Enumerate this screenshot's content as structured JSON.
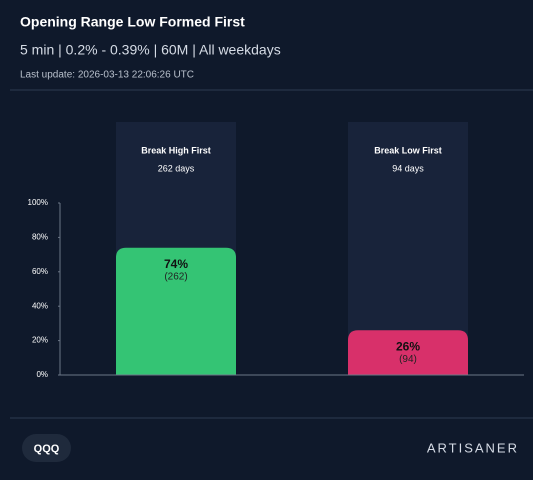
{
  "chart_data": {
    "type": "bar",
    "title": "Opening Range Low Formed First",
    "subtitle": "5 min | 0.2% - 0.39% | 60M | All weekdays",
    "note": "Last update: 2026-03-13 22:06:26 UTC",
    "categories": [
      "Break High First",
      "Break Low First"
    ],
    "category_notes": [
      "262 days",
      "94 days"
    ],
    "values": [
      74,
      26
    ],
    "value_labels": [
      "74%",
      "26%"
    ],
    "count_labels": [
      "(262)",
      "(94)"
    ],
    "colors": [
      "#34c474",
      "#d8306a"
    ],
    "ylim": [
      0,
      100
    ],
    "yticks": [
      {
        "value": 0,
        "label": "0%"
      },
      {
        "value": 20,
        "label": "20%"
      },
      {
        "value": 40,
        "label": "40%"
      },
      {
        "value": 60,
        "label": "60%"
      },
      {
        "value": 80,
        "label": "80%"
      },
      {
        "value": 100,
        "label": "100%"
      }
    ]
  },
  "footer": {
    "ticker": "QQQ",
    "brand": "ARTISANER"
  }
}
